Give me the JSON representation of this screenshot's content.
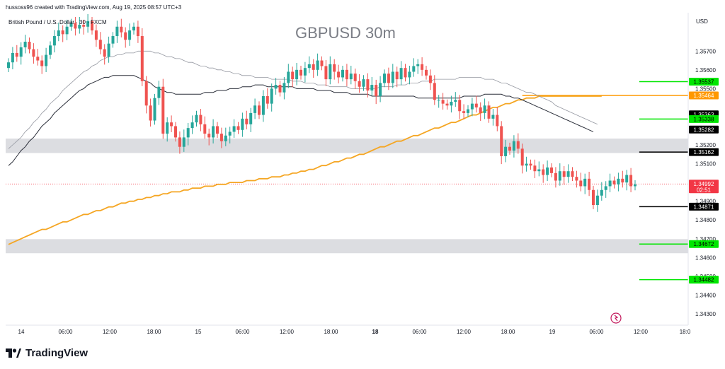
{
  "header": {
    "creator_line": "hussoss96 created with TradingView.com, Aug 19, 2025 08:57 UTC+3",
    "symbol_line": "British Pound / U.S. Dollar · 30 · FXCM",
    "watermark": "GBPUSD 30m"
  },
  "footer": {
    "brand_name": "TradingView"
  },
  "chart_data": {
    "type": "candlestick",
    "title": "GBPUSD 30m",
    "currency_label": "USD",
    "ylim": [
      1.3425,
      1.3585
    ],
    "y_ticks": [
      "1.35700",
      "1.35600",
      "1.35500",
      "1.35200",
      "1.35100",
      "1.34900",
      "1.34800",
      "1.34700",
      "1.34600",
      "1.34500",
      "1.34400",
      "1.34300"
    ],
    "x_ticks": [
      "14",
      "06:00",
      "12:00",
      "18:00",
      "15",
      "06:00",
      "12:00",
      "18:00",
      "18",
      "06:00",
      "12:00",
      "18:00",
      "19",
      "06:00",
      "12:00",
      "18:0"
    ],
    "x_ticks_bold": [
      "18"
    ],
    "current_price": {
      "value": "1.34992",
      "countdown": "02:51",
      "color": "#f23645"
    },
    "price_tags": [
      {
        "value": "1.35537",
        "color": "#00e600",
        "text_color": "#000000"
      },
      {
        "value": "1.35464",
        "color": "#ff9800",
        "text_color": "#ffffff"
      },
      {
        "value": "1.35363",
        "color": "#000000",
        "text_color": "#ffffff"
      },
      {
        "value": "1.35338",
        "color": "#00e600",
        "text_color": "#000000"
      },
      {
        "value": "1.35282",
        "color": "#000000",
        "text_color": "#ffffff"
      },
      {
        "value": "1.35162",
        "color": "#000000",
        "text_color": "#ffffff"
      },
      {
        "value": "1.34871",
        "color": "#000000",
        "text_color": "#ffffff"
      },
      {
        "value": "1.34672",
        "color": "#00e600",
        "text_color": "#000000"
      },
      {
        "value": "1.34482",
        "color": "#00e600",
        "text_color": "#000000"
      }
    ],
    "horizontal_levels": [
      {
        "price": 1.35537,
        "color": "#00e600",
        "from_bar": 151
      },
      {
        "price": 1.35464,
        "color": "#ff9800",
        "from_bar": 123
      },
      {
        "price": 1.35338,
        "color": "#00e600",
        "from_bar": 151
      },
      {
        "price": 1.35162,
        "color": "#000000",
        "from_bar": 151
      },
      {
        "price": 1.34871,
        "color": "#000000",
        "from_bar": 151
      },
      {
        "price": 1.34672,
        "color": "#00e600",
        "from_bar": 151
      },
      {
        "price": 1.34482,
        "color": "#00e600",
        "from_bar": 151
      }
    ],
    "zones": [
      {
        "from": 1.35157,
        "to": 1.35234,
        "color": "#dcdde1"
      },
      {
        "from": 1.34623,
        "to": 1.34698,
        "color": "#dcdde1"
      }
    ],
    "up_color": "#26a69a",
    "down_color": "#ef5350",
    "closes": [
      1.3564,
      1.3569,
      1.3567,
      1.3572,
      1.3575,
      1.3571,
      1.3567,
      1.3565,
      1.3562,
      1.3568,
      1.3573,
      1.3578,
      1.3581,
      1.3579,
      1.3583,
      1.3585,
      1.3582,
      1.3584,
      1.3583,
      1.3586,
      1.3581,
      1.3576,
      1.3571,
      1.3567,
      1.3574,
      1.3578,
      1.3583,
      1.358,
      1.3576,
      1.3581,
      1.3583,
      1.3578,
      1.3554,
      1.3541,
      1.3533,
      1.3545,
      1.3551,
      1.3526,
      1.3532,
      1.353,
      1.3524,
      1.3519,
      1.3524,
      1.3529,
      1.3532,
      1.3536,
      1.3531,
      1.3526,
      1.3524,
      1.353,
      1.3526,
      1.3522,
      1.3525,
      1.3527,
      1.353,
      1.3528,
      1.3534,
      1.3531,
      1.3537,
      1.3541,
      1.3536,
      1.3546,
      1.3542,
      1.355,
      1.3552,
      1.3548,
      1.3553,
      1.3559,
      1.3555,
      1.356,
      1.3557,
      1.3561,
      1.3563,
      1.356,
      1.3565,
      1.3562,
      1.3555,
      1.3563,
      1.3559,
      1.3556,
      1.356,
      1.3555,
      1.3558,
      1.3554,
      1.3551,
      1.3555,
      1.3549,
      1.3552,
      1.3546,
      1.3553,
      1.3558,
      1.3553,
      1.3559,
      1.3555,
      1.3561,
      1.3556,
      1.3559,
      1.3562,
      1.3563,
      1.356,
      1.3557,
      1.3553,
      1.3544,
      1.3544,
      1.3542,
      1.3541,
      1.3543,
      1.3544,
      1.3538,
      1.3537,
      1.3539,
      1.3542,
      1.354,
      1.3537,
      1.3541,
      1.3534,
      1.3536,
      1.353,
      1.3514,
      1.3519,
      1.3517,
      1.3522,
      1.3518,
      1.3509,
      1.351,
      1.3509,
      1.3506,
      1.3507,
      1.3504,
      1.3508,
      1.3505,
      1.3501,
      1.3506,
      1.3503,
      1.3506,
      1.3503,
      1.3501,
      1.3498,
      1.3502,
      1.3496,
      1.3488,
      1.3493,
      1.3496,
      1.3498,
      1.3501,
      1.3499,
      1.3502,
      1.35,
      1.3504,
      1.3498,
      1.3499
    ],
    "ma_fast": [
      1.3509,
      1.3511,
      1.3514,
      1.3517,
      1.3519,
      1.3522,
      1.3524,
      1.3527,
      1.353,
      1.3532,
      1.3534,
      1.3537,
      1.3539,
      1.3541,
      1.3543,
      1.3545,
      1.3547,
      1.3549,
      1.355,
      1.3552,
      1.3553,
      1.3554,
      1.3555,
      1.3556,
      1.3556,
      1.3557,
      1.3557,
      1.3557,
      1.3557,
      1.3557,
      1.3557,
      1.3556,
      1.3555,
      1.3554,
      1.3553,
      1.3551,
      1.355,
      1.3549,
      1.3548,
      1.3548,
      1.3547,
      1.3547,
      1.3547,
      1.3547,
      1.3547,
      1.3547,
      1.3547,
      1.3548,
      1.3548,
      1.3548,
      1.3549,
      1.3549,
      1.3549,
      1.355,
      1.355,
      1.355,
      1.3551,
      1.3551,
      1.3551,
      1.3552,
      1.3552,
      1.3552,
      1.3551,
      1.3551,
      1.3551,
      1.3551,
      1.3551,
      1.3551,
      1.3551,
      1.355,
      1.355,
      1.355,
      1.355,
      1.355,
      1.3549,
      1.3549,
      1.3549,
      1.3549,
      1.3548,
      1.3548,
      1.3548,
      1.3548,
      1.3547,
      1.3547,
      1.3547,
      1.3547,
      1.3547,
      1.3546,
      1.3546,
      1.3546,
      1.3546,
      1.3546,
      1.3546,
      1.3546,
      1.3546,
      1.3546,
      1.3546,
      1.3546,
      1.3545,
      1.3545,
      1.3545,
      1.3545,
      1.3545,
      1.3545,
      1.3545,
      1.3545,
      1.3545,
      1.3545,
      1.3545,
      1.3546,
      1.3546,
      1.3546,
      1.3546,
      1.3546,
      1.3547,
      1.3547,
      1.3547,
      1.3547,
      1.3547,
      1.3546,
      1.3546,
      1.3545,
      1.3545,
      1.3544,
      1.3543,
      1.3542,
      1.3541,
      1.354,
      1.3539,
      1.3538,
      1.3537,
      1.3536,
      1.3535,
      1.3534,
      1.3533,
      1.3532,
      1.3531,
      1.353,
      1.3529,
      1.3528,
      1.3527
    ],
    "ma_slow": [
      1.3518,
      1.352,
      1.3522,
      1.3524,
      1.3527,
      1.3529,
      1.3532,
      1.3534,
      1.3537,
      1.3539,
      1.3542,
      1.3544,
      1.3546,
      1.3549,
      1.3551,
      1.3553,
      1.3555,
      1.3557,
      1.3559,
      1.356,
      1.3562,
      1.3563,
      1.3565,
      1.3566,
      1.3567,
      1.3567,
      1.3568,
      1.3568,
      1.3569,
      1.3569,
      1.3569,
      1.357,
      1.357,
      1.357,
      1.357,
      1.3569,
      1.3569,
      1.3568,
      1.3567,
      1.3567,
      1.3566,
      1.3566,
      1.3565,
      1.3564,
      1.3564,
      1.3563,
      1.3562,
      1.3562,
      1.3561,
      1.3561,
      1.356,
      1.356,
      1.3559,
      1.3559,
      1.3558,
      1.3558,
      1.3557,
      1.3557,
      1.3557,
      1.3556,
      1.3556,
      1.3556,
      1.3556,
      1.3555,
      1.3555,
      1.3555,
      1.3555,
      1.3555,
      1.3554,
      1.3554,
      1.3554,
      1.3553,
      1.3553,
      1.3553,
      1.3552,
      1.3552,
      1.3552,
      1.3551,
      1.3551,
      1.3551,
      1.3551,
      1.3551,
      1.355,
      1.355,
      1.355,
      1.355,
      1.355,
      1.355,
      1.355,
      1.3551,
      1.3551,
      1.3551,
      1.3551,
      1.3552,
      1.3552,
      1.3552,
      1.3553,
      1.3553,
      1.3553,
      1.3554,
      1.3554,
      1.3554,
      1.3555,
      1.3555,
      1.3555,
      1.3555,
      1.3555,
      1.3555,
      1.3556,
      1.3556,
      1.3556,
      1.3556,
      1.3556,
      1.3556,
      1.3555,
      1.3555,
      1.3555,
      1.3554,
      1.3553,
      1.3553,
      1.3552,
      1.3551,
      1.355,
      1.3549,
      1.3548,
      1.3548,
      1.3547,
      1.3546,
      1.3545,
      1.3544,
      1.3543,
      1.3541,
      1.354,
      1.3539,
      1.3538,
      1.3537,
      1.3536,
      1.3535,
      1.3534,
      1.3533,
      1.3532,
      1.3531
    ],
    "ma_long": [
      1.3467,
      1.3468,
      1.3469,
      1.347,
      1.3471,
      1.3472,
      1.3473,
      1.3474,
      1.3475,
      1.3475,
      1.3476,
      1.3477,
      1.3478,
      1.3479,
      1.3479,
      1.348,
      1.3481,
      1.3482,
      1.3483,
      1.3483,
      1.3484,
      1.3485,
      1.3485,
      1.3486,
      1.3487,
      1.3487,
      1.3488,
      1.3489,
      1.3489,
      1.349,
      1.349,
      1.3491,
      1.3491,
      1.3492,
      1.3492,
      1.3493,
      1.3493,
      1.3494,
      1.3494,
      1.3495,
      1.3495,
      1.3495,
      1.3496,
      1.3496,
      1.3497,
      1.3497,
      1.3497,
      1.3498,
      1.3498,
      1.3498,
      1.3499,
      1.3499,
      1.3499,
      1.35,
      1.35,
      1.35,
      1.35,
      1.3501,
      1.3501,
      1.3501,
      1.3502,
      1.3502,
      1.3502,
      1.3503,
      1.3503,
      1.3503,
      1.3504,
      1.3504,
      1.3505,
      1.3505,
      1.3506,
      1.3506,
      1.3507,
      1.3507,
      1.3508,
      1.3509,
      1.3509,
      1.351,
      1.3511,
      1.3511,
      1.3512,
      1.3513,
      1.3513,
      1.3514,
      1.3515,
      1.3515,
      1.3516,
      1.3517,
      1.3518,
      1.3519,
      1.3519,
      1.352,
      1.3521,
      1.3522,
      1.3522,
      1.3523,
      1.3524,
      1.3525,
      1.3525,
      1.3526,
      1.3527,
      1.3528,
      1.3529,
      1.3529,
      1.353,
      1.3531,
      1.3532,
      1.3532,
      1.3533,
      1.3534,
      1.3535,
      1.3536,
      1.3536,
      1.3537,
      1.3538,
      1.3539,
      1.354,
      1.354,
      1.3541,
      1.3542,
      1.3542,
      1.3543,
      1.3544,
      1.3544,
      1.3545,
      1.3545,
      1.3545,
      1.3546,
      1.3546,
      1.3546,
      1.3546,
      1.3546,
      1.3546,
      1.3546,
      1.3546,
      1.3546,
      1.3546,
      1.3546,
      1.3546,
      1.3546,
      1.3546,
      1.3546,
      1.3546
    ],
    "ma_long_color": "#f5a623",
    "ma_fast_color": "#2a2e39",
    "ma_slow_color": "#9598a1"
  }
}
